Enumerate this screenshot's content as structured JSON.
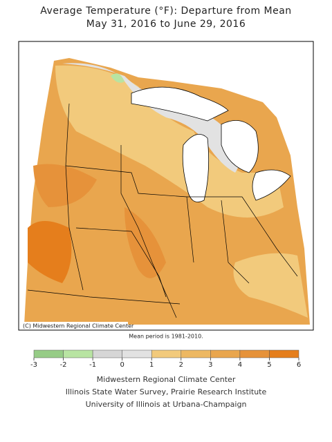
{
  "header": {
    "title": [
      "Average Temperature (°F): Departure from Mean",
      "May 31, 2016 to June 29, 2016"
    ]
  },
  "map": {
    "copyright": "(C) Midwestern Regional Climate Center",
    "mean_period": "Mean period is 1981-2010."
  },
  "legend": {
    "ticks": [
      -3,
      -2,
      -1,
      0,
      1,
      2,
      3,
      4,
      5,
      6
    ],
    "colors": [
      "#96cc86",
      "#b8e4a2",
      "#d6d6d6",
      "#e2e2e2",
      "#f2ca7c",
      "#edb862",
      "#e9a64e",
      "#e6923a",
      "#e57e1c"
    ]
  },
  "footer": {
    "lines": [
      "Midwestern Regional Climate Center",
      "Illinois State Water Survey, Prairie Research Institute",
      "University of Illinois at Urbana-Champaign"
    ]
  }
}
